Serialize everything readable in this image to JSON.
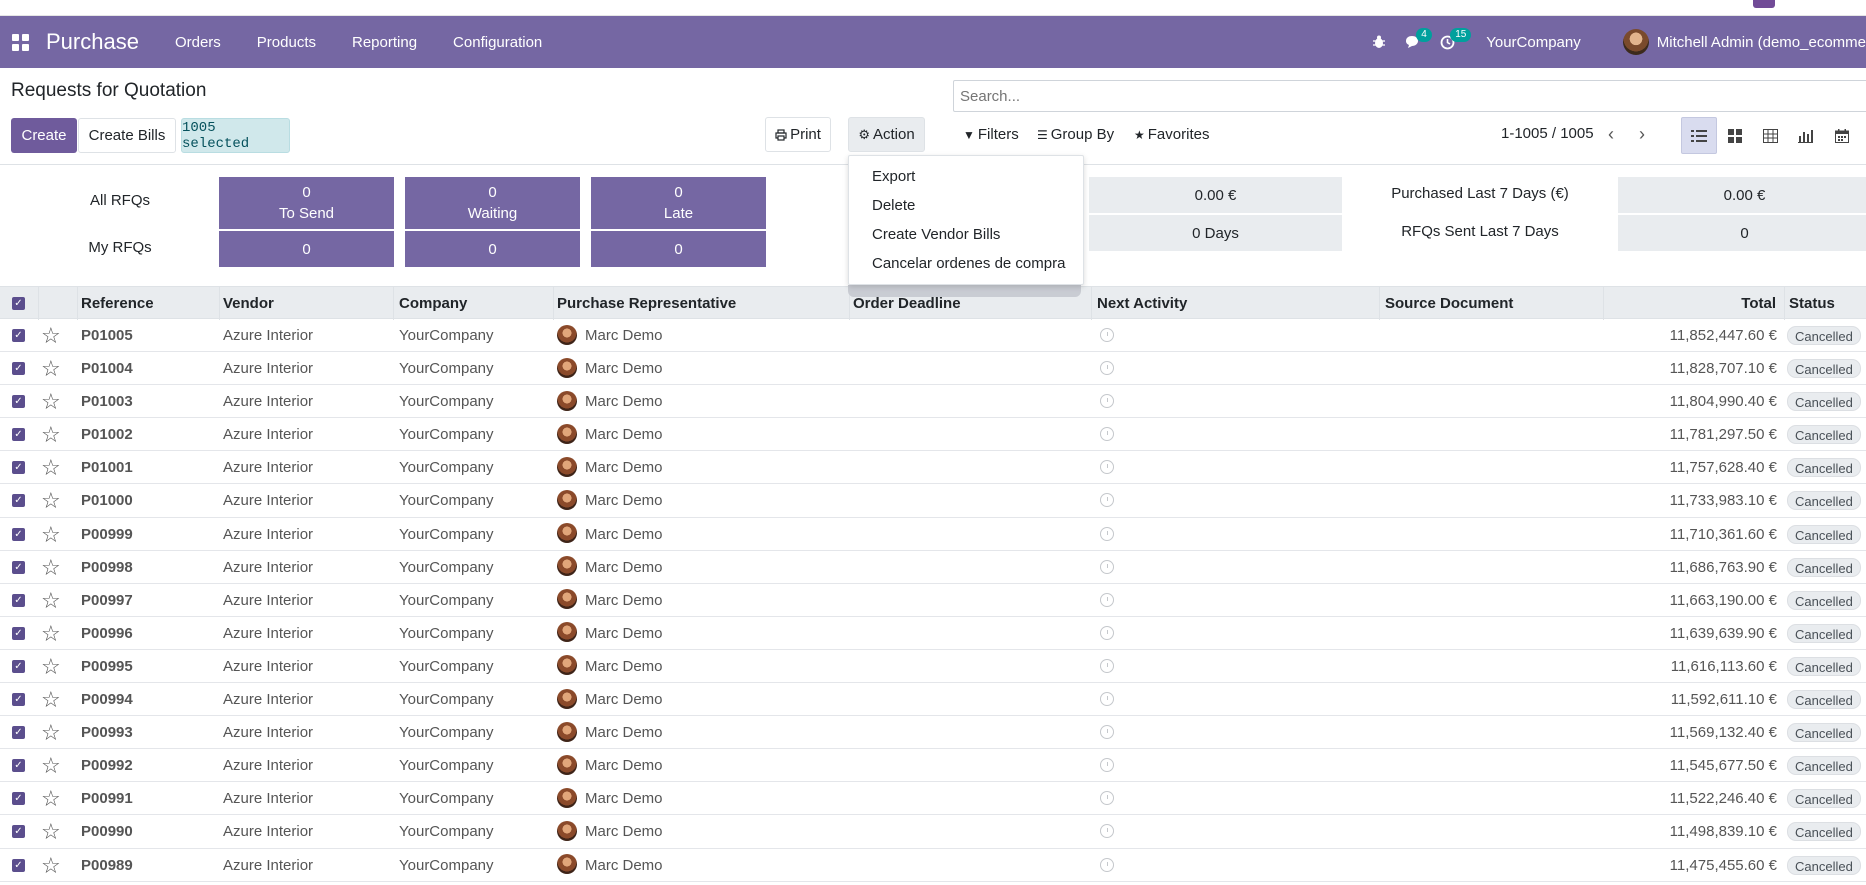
{
  "navbar": {
    "app_name": "Purchase",
    "menu": [
      "Orders",
      "Products",
      "Reporting",
      "Configuration"
    ],
    "chat_count": "4",
    "activity_count": "15",
    "company": "YourCompany",
    "user": "Mitchell Admin (demo_ecomme"
  },
  "page": {
    "title": "Requests for Quotation",
    "search_placeholder": "Search..."
  },
  "toolbar": {
    "create": "Create",
    "create_bills": "Create Bills",
    "selected": "1005 selected",
    "print": "Print",
    "action": "Action",
    "filters": "Filters",
    "group_by": "Group By",
    "favorites": "Favorites",
    "pager": "1-1005 / 1005"
  },
  "action_menu": [
    "Export",
    "Delete",
    "Create Vendor Bills",
    "Cancelar ordenes de compra"
  ],
  "dashboard": {
    "all_rfqs": "All RFQs",
    "my_rfqs": "My RFQs",
    "tiles": [
      {
        "value": "0",
        "label": "To Send",
        "my": "0"
      },
      {
        "value": "0",
        "label": "Waiting",
        "my": "0"
      },
      {
        "value": "0",
        "label": "Late",
        "my": "0"
      }
    ],
    "left_values": [
      "0.00 €",
      "0  Days"
    ],
    "right_labels": [
      "Purchased Last 7 Days (€)",
      "RFQs Sent Last 7 Days"
    ],
    "right_values": [
      "0.00 €",
      "0"
    ]
  },
  "table": {
    "columns": [
      "Reference",
      "Vendor",
      "Company",
      "Purchase Representative",
      "Order Deadline",
      "Next Activity",
      "Source Document",
      "Total",
      "Status"
    ],
    "rows": [
      {
        "ref": "P01005",
        "vendor": "Azure Interior",
        "company": "YourCompany",
        "rep": "Marc Demo",
        "total": "11,852,447.60 €",
        "status": "Cancelled"
      },
      {
        "ref": "P01004",
        "vendor": "Azure Interior",
        "company": "YourCompany",
        "rep": "Marc Demo",
        "total": "11,828,707.10 €",
        "status": "Cancelled"
      },
      {
        "ref": "P01003",
        "vendor": "Azure Interior",
        "company": "YourCompany",
        "rep": "Marc Demo",
        "total": "11,804,990.40 €",
        "status": "Cancelled"
      },
      {
        "ref": "P01002",
        "vendor": "Azure Interior",
        "company": "YourCompany",
        "rep": "Marc Demo",
        "total": "11,781,297.50 €",
        "status": "Cancelled"
      },
      {
        "ref": "P01001",
        "vendor": "Azure Interior",
        "company": "YourCompany",
        "rep": "Marc Demo",
        "total": "11,757,628.40 €",
        "status": "Cancelled"
      },
      {
        "ref": "P01000",
        "vendor": "Azure Interior",
        "company": "YourCompany",
        "rep": "Marc Demo",
        "total": "11,733,983.10 €",
        "status": "Cancelled"
      },
      {
        "ref": "P00999",
        "vendor": "Azure Interior",
        "company": "YourCompany",
        "rep": "Marc Demo",
        "total": "11,710,361.60 €",
        "status": "Cancelled"
      },
      {
        "ref": "P00998",
        "vendor": "Azure Interior",
        "company": "YourCompany",
        "rep": "Marc Demo",
        "total": "11,686,763.90 €",
        "status": "Cancelled"
      },
      {
        "ref": "P00997",
        "vendor": "Azure Interior",
        "company": "YourCompany",
        "rep": "Marc Demo",
        "total": "11,663,190.00 €",
        "status": "Cancelled"
      },
      {
        "ref": "P00996",
        "vendor": "Azure Interior",
        "company": "YourCompany",
        "rep": "Marc Demo",
        "total": "11,639,639.90 €",
        "status": "Cancelled"
      },
      {
        "ref": "P00995",
        "vendor": "Azure Interior",
        "company": "YourCompany",
        "rep": "Marc Demo",
        "total": "11,616,113.60 €",
        "status": "Cancelled"
      },
      {
        "ref": "P00994",
        "vendor": "Azure Interior",
        "company": "YourCompany",
        "rep": "Marc Demo",
        "total": "11,592,611.10 €",
        "status": "Cancelled"
      },
      {
        "ref": "P00993",
        "vendor": "Azure Interior",
        "company": "YourCompany",
        "rep": "Marc Demo",
        "total": "11,569,132.40 €",
        "status": "Cancelled"
      },
      {
        "ref": "P00992",
        "vendor": "Azure Interior",
        "company": "YourCompany",
        "rep": "Marc Demo",
        "total": "11,545,677.50 €",
        "status": "Cancelled"
      },
      {
        "ref": "P00991",
        "vendor": "Azure Interior",
        "company": "YourCompany",
        "rep": "Marc Demo",
        "total": "11,522,246.40 €",
        "status": "Cancelled"
      },
      {
        "ref": "P00990",
        "vendor": "Azure Interior",
        "company": "YourCompany",
        "rep": "Marc Demo",
        "total": "11,498,839.10 €",
        "status": "Cancelled"
      },
      {
        "ref": "P00989",
        "vendor": "Azure Interior",
        "company": "YourCompany",
        "rep": "Marc Demo",
        "total": "11,475,455.60 €",
        "status": "Cancelled"
      }
    ]
  }
}
